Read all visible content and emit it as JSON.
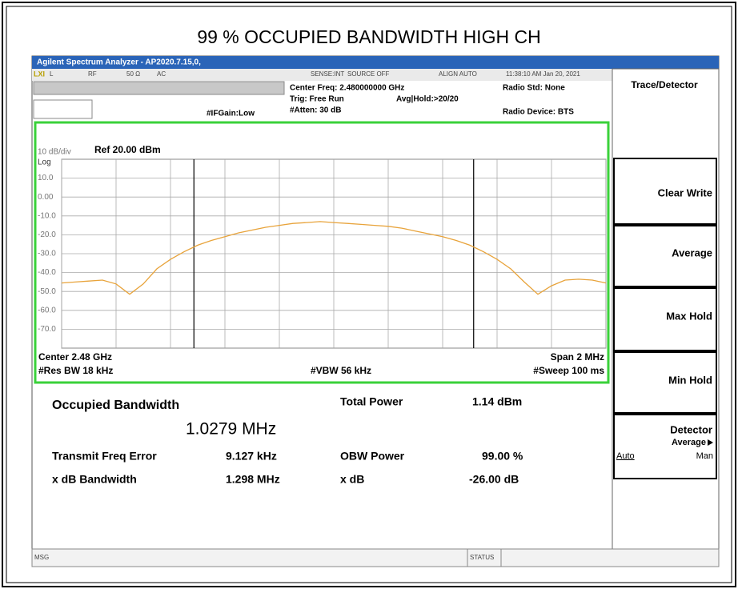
{
  "title": "99 % OCCUPIED BANDWIDTH HIGH CH",
  "window_title": "Agilent Spectrum Analyzer - AP2020.7.15,0,",
  "status_bar": {
    "items": [
      "L",
      "RF",
      "50 Ω",
      "AC",
      "SENSE:INT",
      "SOURCE OFF",
      "ALIGN AUTO",
      "11:38:10 AM Jan 20, 2021"
    ]
  },
  "settings": {
    "center_freq": "Center Freq: 2.480000000 GHz",
    "trig": "Trig: Free Run",
    "avg_hold": "Avg|Hold:>20/20",
    "atten": "#Atten: 30 dB",
    "if_gain": "#IFGain:Low",
    "radio_std": "Radio Std: None",
    "radio_device": "Radio Device: BTS"
  },
  "plot": {
    "scale": "10 dB/div",
    "log": "Log",
    "ref": "Ref 20.00 dBm",
    "center": "Center 2.48 GHz",
    "span": "Span 2 MHz",
    "res_bw": "#Res BW 18 kHz",
    "vbw": "#VBW 56 kHz",
    "sweep": "#Sweep 100 ms",
    "xlim": [
      2.479,
      2.481
    ],
    "ylim": [
      -80,
      20
    ],
    "xticks": [
      2.479,
      2.4792,
      2.4794,
      2.4796,
      2.4798,
      2.48,
      2.4802,
      2.4804,
      2.4806,
      2.4808,
      2.481
    ],
    "yticks": [
      {
        "value": 10,
        "label": "10.0"
      },
      {
        "value": 0,
        "label": "0.00"
      },
      {
        "value": -10,
        "label": "-10.0"
      },
      {
        "value": -20,
        "label": "-20.0"
      },
      {
        "value": -30,
        "label": "-30.0"
      },
      {
        "value": -40,
        "label": "-40.0"
      },
      {
        "value": -50,
        "label": "-50.0"
      },
      {
        "value": -60,
        "label": "-60.0"
      },
      {
        "value": -70,
        "label": "-70.0"
      }
    ],
    "markers": [
      2.47948605,
      2.48051395
    ],
    "trace": {
      "color": "#e8a33a",
      "x": [
        2.479,
        2.47905,
        2.4791,
        2.47915,
        2.4792,
        2.47925,
        2.4793,
        2.47935,
        2.4794,
        2.47945,
        2.4795,
        2.47955,
        2.4796,
        2.47965,
        2.4797,
        2.47975,
        2.4798,
        2.47985,
        2.4799,
        2.47995,
        2.48,
        2.48005,
        2.4801,
        2.48015,
        2.4802,
        2.48025,
        2.4803,
        2.48035,
        2.4804,
        2.48045,
        2.4805,
        2.48055,
        2.4806,
        2.48065,
        2.4807,
        2.48075,
        2.4808,
        2.48085,
        2.4809,
        2.48095,
        2.481
      ],
      "values": [
        -45.5,
        -45,
        -44.5,
        -44,
        -46,
        -51.5,
        -46,
        -38,
        -33,
        -29,
        -25.5,
        -23,
        -21,
        -19,
        -17.5,
        -16,
        -15,
        -14,
        -13.5,
        -13,
        -13.5,
        -14,
        -14.5,
        -15,
        -15.5,
        -16.5,
        -18,
        -19.5,
        -21,
        -23,
        -25.5,
        -29,
        -33,
        -38,
        -45,
        -51.5,
        -47,
        -44,
        -43.5,
        -44,
        -45.5
      ]
    }
  },
  "results": {
    "occupied_bandwidth_label": "Occupied Bandwidth",
    "occupied_bandwidth": "1.0279 MHz",
    "total_power_label": "Total Power",
    "total_power": "1.14 dBm",
    "transmit_freq_error_label": "Transmit Freq Error",
    "transmit_freq_error": "9.127 kHz",
    "obw_power_label": "OBW Power",
    "obw_power": "99.00 %",
    "x_db_bandwidth_label": "x dB Bandwidth",
    "x_db_bandwidth": "1.298 MHz",
    "x_db_label": "x dB",
    "x_db": "-26.00 dB"
  },
  "softkeys": {
    "header": "Trace/Detector",
    "keys": [
      "Clear Write",
      "Average",
      "Max Hold",
      "Min Hold"
    ],
    "detector": "Detector",
    "detector_value": "Average",
    "auto": "Auto",
    "man": "Man"
  },
  "footer": {
    "msg": "MSG",
    "status": "STATUS"
  }
}
